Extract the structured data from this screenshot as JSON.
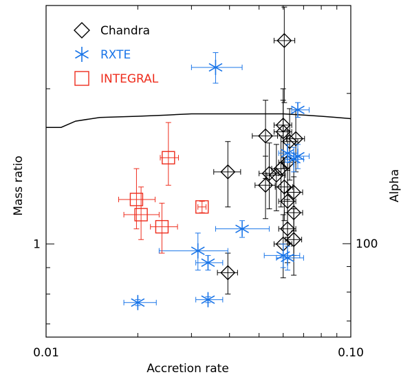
{
  "chart_data": {
    "type": "scatter",
    "xlabel": "Accretion rate",
    "ylabel": "Mass ratio",
    "y2label": "Alpha",
    "x_scale": "log",
    "y_scale": "log",
    "y2_scale": "log",
    "xlim": [
      0.01,
      0.1
    ],
    "ylim": [
      0.66,
      2.9
    ],
    "y2lim": [
      65,
      300
    ],
    "x_ticks": [
      {
        "value": 0.01,
        "label": "0.01"
      },
      {
        "value": 0.1,
        "label": "0.10"
      }
    ],
    "y_ticks": [
      {
        "value": 1,
        "label": "1"
      }
    ],
    "y2_ticks": [
      {
        "value": 100,
        "label": "100"
      }
    ],
    "grid": false,
    "legend_position": "top-left",
    "colors": {
      "chandra": "#000000",
      "rxte": "#1874e8",
      "integral": "#ee2c1c"
    },
    "series": [
      {
        "name": "Chandra",
        "marker": "diamond",
        "color": "#000000",
        "points": [
          {
            "x": 0.0605,
            "y": 2.48,
            "xerr": [
              0.0045,
              0.005
            ],
            "yerr": [
              0.6,
              0.4
            ]
          },
          {
            "x": 0.0525,
            "y": 1.62,
            "xerr": [
              0.005,
              0.005
            ],
            "yerr": [
              0.28,
              0.28
            ]
          },
          {
            "x": 0.06,
            "y": 1.7,
            "xerr": [
              0.004,
              0.004
            ],
            "yerr": [
              0.3,
              0.3
            ]
          },
          {
            "x": 0.06,
            "y": 1.65,
            "xerr": [
              0.004,
              0.004
            ],
            "yerr": [
              0.25,
              0.25
            ]
          },
          {
            "x": 0.063,
            "y": 1.58,
            "xerr": [
              0.004,
              0.004
            ],
            "yerr": [
              0.25,
              0.25
            ]
          },
          {
            "x": 0.066,
            "y": 1.6,
            "xerr": [
              0.0045,
              0.0045
            ],
            "yerr": [
              0.22,
              0.22
            ]
          },
          {
            "x": 0.0395,
            "y": 1.38,
            "xerr": [
              0.004,
              0.004
            ],
            "yerr": [
              0.2,
              0.2
            ]
          },
          {
            "x": 0.054,
            "y": 1.37,
            "xerr": [
              0.004,
              0.004
            ],
            "yerr": [
              0.2,
              0.2
            ]
          },
          {
            "x": 0.057,
            "y": 1.36,
            "xerr": [
              0.004,
              0.004
            ],
            "yerr": [
              0.2,
              0.2
            ]
          },
          {
            "x": 0.059,
            "y": 1.4,
            "xerr": [
              0.004,
              0.004
            ],
            "yerr": [
              0.22,
              0.22
            ]
          },
          {
            "x": 0.062,
            "y": 1.44,
            "xerr": [
              0.004,
              0.004
            ],
            "yerr": [
              0.22,
              0.22
            ]
          },
          {
            "x": 0.0525,
            "y": 1.3,
            "xerr": [
              0.004,
              0.004
            ],
            "yerr": [
              0.18,
              0.18
            ]
          },
          {
            "x": 0.0605,
            "y": 1.29,
            "xerr": [
              0.004,
              0.004
            ],
            "yerr": [
              0.18,
              0.18
            ]
          },
          {
            "x": 0.065,
            "y": 1.26,
            "xerr": [
              0.0045,
              0.0045
            ],
            "yerr": [
              0.2,
              0.2
            ]
          },
          {
            "x": 0.062,
            "y": 1.21,
            "xerr": [
              0.004,
              0.004
            ],
            "yerr": [
              0.18,
              0.18
            ]
          },
          {
            "x": 0.065,
            "y": 1.15,
            "xerr": [
              0.0045,
              0.0045
            ],
            "yerr": [
              0.2,
              0.2
            ]
          },
          {
            "x": 0.062,
            "y": 1.07,
            "xerr": [
              0.004,
              0.004
            ],
            "yerr": [
              0.15,
              0.15
            ]
          },
          {
            "x": 0.065,
            "y": 1.02,
            "xerr": [
              0.004,
              0.004
            ],
            "yerr": [
              0.15,
              0.15
            ]
          },
          {
            "x": 0.06,
            "y": 1.0,
            "xerr": [
              0.004,
              0.004
            ],
            "yerr": [
              0.14,
              0.14
            ]
          },
          {
            "x": 0.0395,
            "y": 0.88,
            "xerr": [
              0.003,
              0.003
            ],
            "yerr": [
              0.08,
              0.08
            ]
          }
        ]
      },
      {
        "name": "RXTE",
        "marker": "asterisk",
        "color": "#1874e8",
        "points": [
          {
            "x": 0.036,
            "y": 2.2,
            "xerr": [
              0.006,
              0.008
            ],
            "yerr": [
              0.15,
              0.15
            ]
          },
          {
            "x": 0.067,
            "y": 1.82,
            "xerr": [
              0.003,
              0.006
            ],
            "yerr": [
              0.06,
              0.06
            ]
          },
          {
            "x": 0.067,
            "y": 1.48,
            "xerr": [
              0.004,
              0.006
            ],
            "yerr": [
              0.08,
              0.08
            ]
          },
          {
            "x": 0.065,
            "y": 1.46,
            "xerr": [
              0.004,
              0.005
            ],
            "yerr": [
              0.08,
              0.08
            ]
          },
          {
            "x": 0.062,
            "y": 1.5,
            "xerr": [
              0.004,
              0.005
            ],
            "yerr": [
              0.06,
              0.06
            ]
          },
          {
            "x": 0.044,
            "y": 1.07,
            "xerr": [
              0.008,
              0.01
            ],
            "yerr": [
              0.04,
              0.04
            ]
          },
          {
            "x": 0.0315,
            "y": 0.97,
            "xerr": [
              0.008,
              0.008
            ],
            "yerr": [
              0.08,
              0.08
            ]
          },
          {
            "x": 0.034,
            "y": 0.92,
            "xerr": [
              0.003,
              0.004
            ],
            "yerr": [
              0.03,
              0.03
            ]
          },
          {
            "x": 0.06,
            "y": 0.95,
            "xerr": [
              0.008,
              0.008
            ],
            "yerr": [
              0.05,
              0.05
            ]
          },
          {
            "x": 0.062,
            "y": 0.94,
            "xerr": [
              0.005,
              0.008
            ],
            "yerr": [
              0.05,
              0.05
            ]
          },
          {
            "x": 0.02,
            "y": 0.77,
            "xerr": [
              0.002,
              0.003
            ],
            "yerr": [
              0.01,
              0.01
            ]
          },
          {
            "x": 0.034,
            "y": 0.78,
            "xerr": [
              0.003,
              0.004
            ],
            "yerr": [
              0.01,
              0.01
            ]
          }
        ]
      },
      {
        "name": "INTEGRAL",
        "marker": "square",
        "color": "#ee2c1c",
        "points": [
          {
            "x": 0.0252,
            "y": 1.47,
            "xerr": [
              0.0015,
              0.002
            ],
            "yerr": [
              0.17,
              0.25
            ]
          },
          {
            "x": 0.0198,
            "y": 1.22,
            "xerr": [
              0.0025,
              0.003
            ],
            "yerr": [
              0.15,
              0.18
            ]
          },
          {
            "x": 0.0205,
            "y": 1.14,
            "xerr": [
              0.0025,
              0.003
            ],
            "yerr": [
              0.12,
              0.15
            ]
          },
          {
            "x": 0.0325,
            "y": 1.18,
            "xerr": [
              0.001,
              0.001
            ],
            "yerr": [
              0.03,
              0.03
            ]
          },
          {
            "x": 0.024,
            "y": 1.08,
            "xerr": [
              0.002,
              0.003
            ],
            "yerr": [
              0.12,
              0.12
            ]
          }
        ]
      }
    ],
    "curve": {
      "name": "",
      "color": "#000000",
      "x": [
        0.01,
        0.0112,
        0.0125,
        0.015,
        0.02,
        0.025,
        0.03,
        0.04,
        0.05,
        0.06,
        0.07,
        0.08,
        0.09,
        0.1
      ],
      "y2": [
        171,
        171,
        176,
        179,
        180,
        181,
        182,
        182,
        182,
        182,
        181,
        180,
        179,
        178
      ]
    }
  }
}
